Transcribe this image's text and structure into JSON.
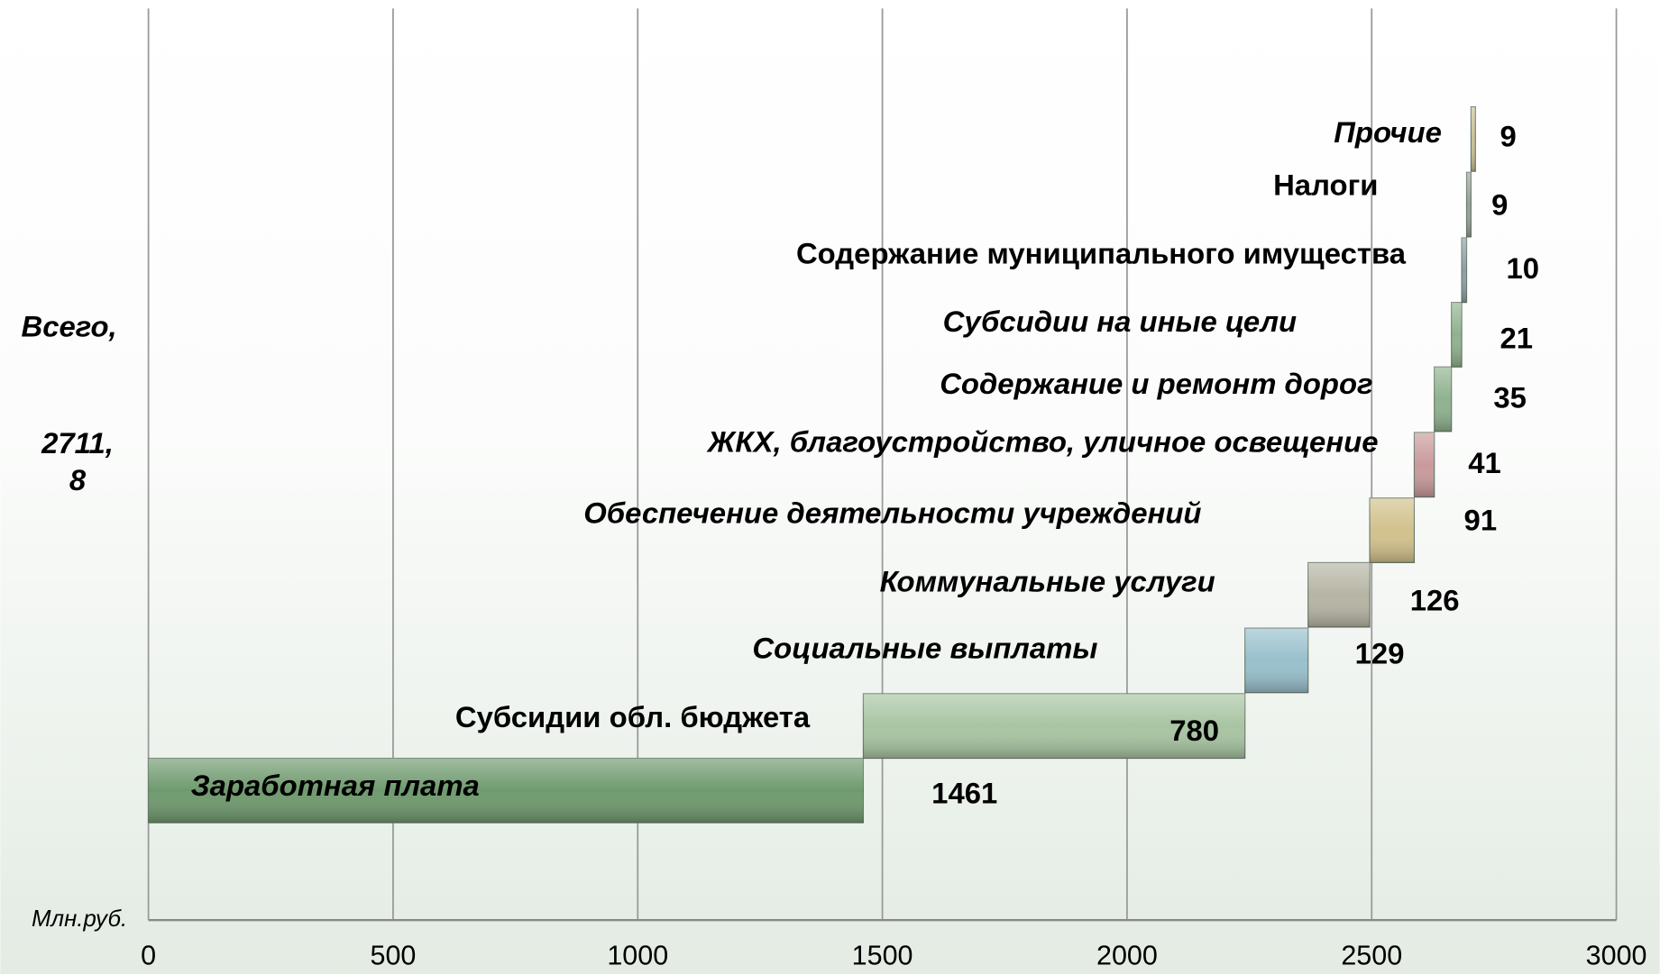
{
  "chart_data": {
    "type": "waterfall",
    "categories": [
      "Заработная плата",
      "Субсидии обл. бюджета",
      "Социальные выплаты",
      "Коммунальные услуги",
      "Обеспечение деятельности учреждений",
      "ЖКХ, благоустройство, уличное освещение",
      "Содержание и ремонт дорог",
      "Субсидии на иные цели",
      "Содержание муниципального имущества",
      "Налоги",
      "Прочие"
    ],
    "values": [
      1461,
      780,
      129,
      126,
      91,
      41,
      35,
      21,
      10,
      9,
      9
    ],
    "colors": [
      "#6f9a6e",
      "#a8c4a2",
      "#98c0cc",
      "#b6b5a4",
      "#d2c18c",
      "#c99a9c",
      "#8fb28e",
      "#8fb28e",
      "#8ba0a8",
      "#9aa0a0",
      "#c8c094"
    ],
    "xlim": [
      0,
      3000
    ],
    "xticks": [
      0,
      500,
      1000,
      1500,
      2000,
      2500,
      3000
    ],
    "grid": true,
    "total_label": [
      "Всего,",
      "2711,",
      "8"
    ],
    "unit_label": "Млн.руб."
  }
}
